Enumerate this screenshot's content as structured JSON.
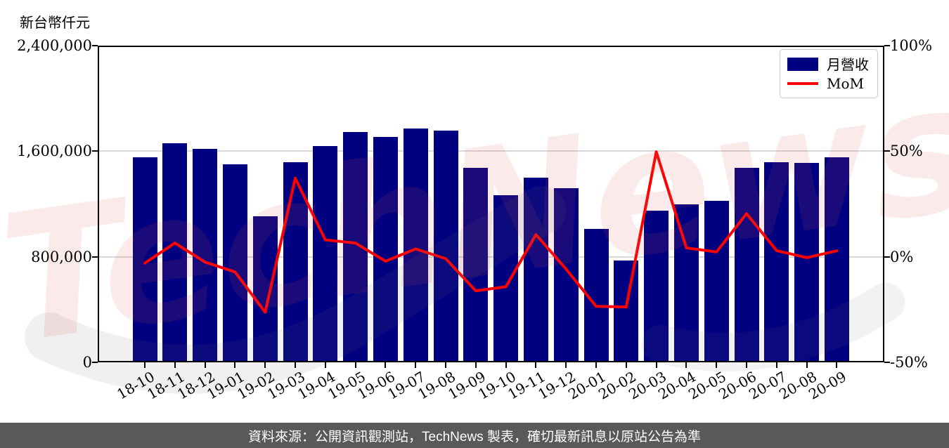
{
  "page": {
    "watermark": "TechNews",
    "caption": "資料來源：公開資訊觀測站，TechNews 製表，確切最新訊息以原站公告為準"
  },
  "chart_data": {
    "type": "bar",
    "title": "",
    "categories": [
      "18-10",
      "18-11",
      "18-12",
      "19-01",
      "19-02",
      "19-03",
      "19-04",
      "19-05",
      "19-06",
      "19-07",
      "19-08",
      "19-09",
      "19-10",
      "19-11",
      "19-12",
      "20-01",
      "20-02",
      "20-03",
      "20-04",
      "20-05",
      "20-06",
      "20-07",
      "20-08",
      "20-09"
    ],
    "series": [
      {
        "name": "月營收",
        "type": "bar",
        "axis": "left",
        "color": "#000080",
        "unit": "新台幣仟元",
        "values": [
          1554000,
          1660000,
          1618000,
          1501000,
          1107000,
          1517000,
          1639000,
          1745000,
          1708000,
          1772000,
          1756000,
          1474000,
          1267000,
          1400000,
          1320000,
          1011000,
          772000,
          1149000,
          1197000,
          1224000,
          1474000,
          1517000,
          1511000,
          1554000
        ]
      },
      {
        "name": "MoM",
        "type": "line",
        "axis": "right",
        "color": "#ff0000",
        "unit": "%",
        "values": [
          -3.0,
          6.5,
          -2.5,
          -7.2,
          -26.3,
          37.2,
          8.0,
          6.5,
          -2.1,
          3.7,
          -0.9,
          -16.1,
          -14.2,
          10.5,
          -5.8,
          -23.5,
          -23.8,
          49.7,
          4.2,
          2.3,
          20.4,
          2.9,
          -0.4,
          2.8
        ]
      }
    ],
    "left_axis": {
      "title": "新台幣仟元",
      "ticks": [
        "2,400,000",
        "1,600,000",
        "800,000",
        "0"
      ],
      "tick_values": [
        2400000,
        1600000,
        800000,
        0
      ],
      "range": [
        0,
        2400000
      ]
    },
    "right_axis": {
      "ticks": [
        "100%",
        "50%",
        "0%",
        "-50%"
      ],
      "tick_values": [
        100,
        50,
        0,
        -50
      ],
      "range": [
        -50,
        100
      ]
    },
    "grid": true,
    "legend_position": "top-right"
  }
}
